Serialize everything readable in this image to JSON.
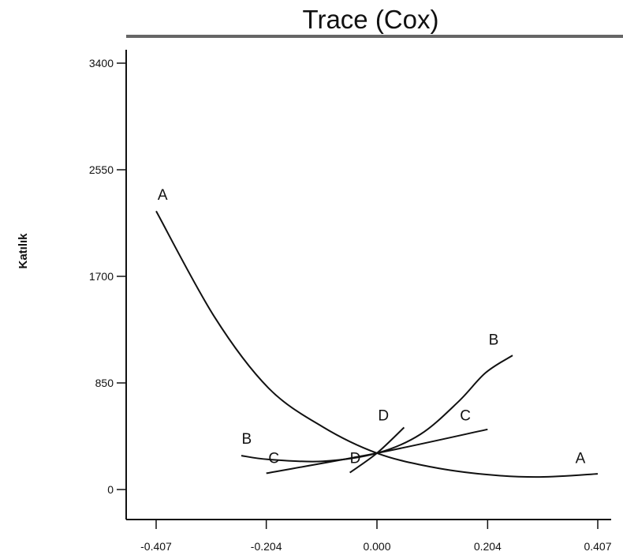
{
  "chart_data": {
    "type": "line",
    "title": "Trace (Cox)",
    "xlabel": "",
    "ylabel": "Katılık",
    "xlim": [
      -0.45,
      0.45
    ],
    "ylim": [
      -180,
      3450
    ],
    "x_ticks": [
      -0.407,
      -0.204,
      0.0,
      0.204,
      0.407
    ],
    "x_tick_labels": [
      "-0.407",
      "-0.204",
      "0.000",
      "0.204",
      "0.407"
    ],
    "y_ticks": [
      0,
      850,
      1700,
      2550,
      3400
    ],
    "y_tick_labels": [
      "0",
      "850",
      "1700",
      "2550",
      "3400"
    ],
    "grid": false,
    "legend": "none",
    "line_color": "#111111",
    "series": [
      {
        "name": "A",
        "x": [
          -0.407,
          -0.3,
          -0.2,
          -0.1,
          0.0,
          0.1,
          0.2,
          0.3,
          0.407
        ],
        "y": [
          2220,
          1380,
          810,
          500,
          290,
          180,
          120,
          100,
          125
        ],
        "labels": [
          {
            "text": "A",
            "x": -0.395,
            "y": 2310
          },
          {
            "text": "A",
            "x": 0.375,
            "y": 210
          }
        ]
      },
      {
        "name": "B",
        "x": [
          -0.25,
          -0.2,
          -0.1,
          0.0,
          0.08,
          0.15,
          0.2,
          0.25
        ],
        "y": [
          270,
          240,
          225,
          290,
          440,
          700,
          930,
          1070
        ],
        "labels": [
          {
            "text": "B",
            "x": -0.24,
            "y": 365
          },
          {
            "text": "B",
            "x": 0.215,
            "y": 1155
          }
        ]
      },
      {
        "name": "C",
        "x": [
          -0.204,
          0.0,
          0.204
        ],
        "y": [
          130,
          290,
          480
        ],
        "labels": [
          {
            "text": "C",
            "x": -0.19,
            "y": 210
          },
          {
            "text": "C",
            "x": 0.163,
            "y": 550
          }
        ]
      },
      {
        "name": "D",
        "x": [
          -0.05,
          0.0,
          0.05
        ],
        "y": [
          135,
          290,
          495
        ],
        "labels": [
          {
            "text": "D",
            "x": -0.04,
            "y": 210
          },
          {
            "text": "D",
            "x": 0.012,
            "y": 550
          }
        ]
      }
    ]
  }
}
